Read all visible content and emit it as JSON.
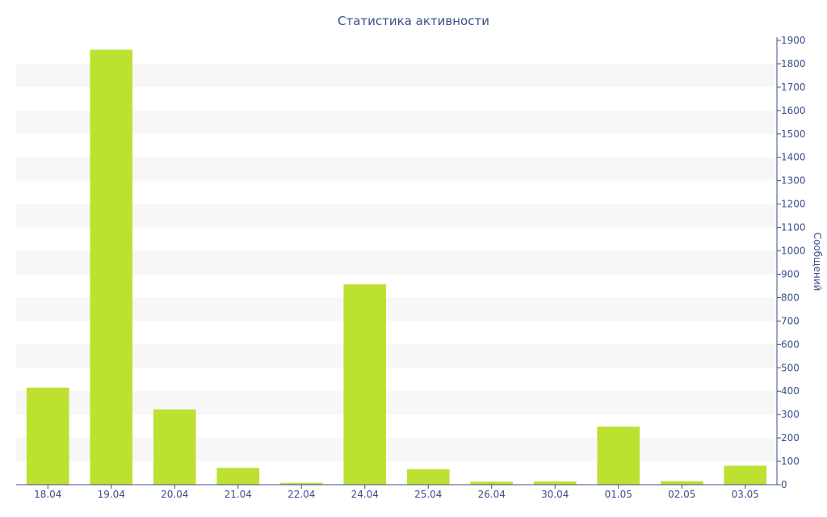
{
  "chart_data": {
    "type": "bar",
    "title": "Статистика активности",
    "xlabel": "",
    "ylabel": "Сообщений",
    "categories": [
      "18.04",
      "19.04",
      "20.04",
      "21.04",
      "22.04",
      "24.04",
      "25.04",
      "26.04",
      "30.04",
      "01.05",
      "02.05",
      "03.05"
    ],
    "values": [
      415,
      1860,
      322,
      72,
      8,
      857,
      66,
      13,
      14,
      248,
      15,
      81
    ],
    "ylim": [
      0,
      1900
    ],
    "yticks": [
      0,
      100,
      200,
      300,
      400,
      500,
      600,
      700,
      800,
      900,
      1000,
      1100,
      1200,
      1300,
      1400,
      1500,
      1600,
      1700,
      1800,
      1900
    ],
    "y_axis_side": "right",
    "grid": "alternating horizontal bands",
    "colors": {
      "bar": "#bce130",
      "text": "#3b4f8a",
      "band": "#f7f7f7"
    }
  }
}
